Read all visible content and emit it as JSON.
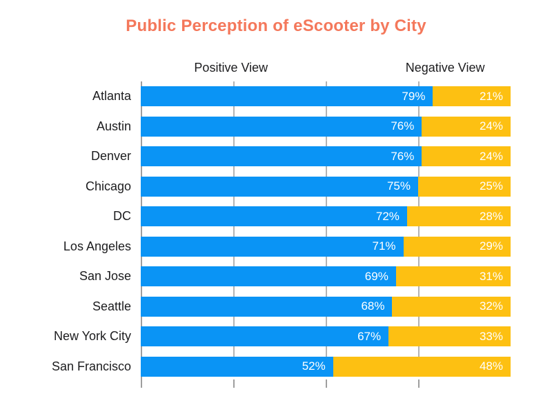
{
  "title": "Public Perception of eScooter by City",
  "column_headers": {
    "positive": "Positive View",
    "negative": "Negative View"
  },
  "chart_data": {
    "type": "bar",
    "orientation": "horizontal",
    "stacked": true,
    "unit": "%",
    "title": "Public Perception of eScooter by City",
    "categories": [
      "Atlanta",
      "Austin",
      "Denver",
      "Chicago",
      "DC",
      "Los Angeles",
      "San Jose",
      "Seattle",
      "New York City",
      "San Francisco"
    ],
    "series": [
      {
        "name": "Positive View",
        "color": "#0A94F5",
        "values": [
          79,
          76,
          76,
          75,
          72,
          71,
          69,
          68,
          67,
          52
        ]
      },
      {
        "name": "Negative View",
        "color": "#FDC012",
        "values": [
          21,
          24,
          24,
          25,
          28,
          29,
          31,
          32,
          33,
          48
        ]
      }
    ],
    "xlim": [
      0,
      100
    ],
    "gridlines_percent": [
      25,
      50,
      75
    ],
    "axis_ticks_percent": [
      0,
      25,
      50,
      75
    ],
    "value_label_format": "{value}%",
    "legend_position": "top-as-column-headers",
    "grid": true
  },
  "colors": {
    "positive": "#0A94F5",
    "negative": "#FDC012",
    "title": "#F4785B",
    "text": "#1C1C1E",
    "grid": "#B3B3B3",
    "axis": "#9E9E9E",
    "value_label": "#FFFFFF",
    "background": "#FFFFFF"
  }
}
